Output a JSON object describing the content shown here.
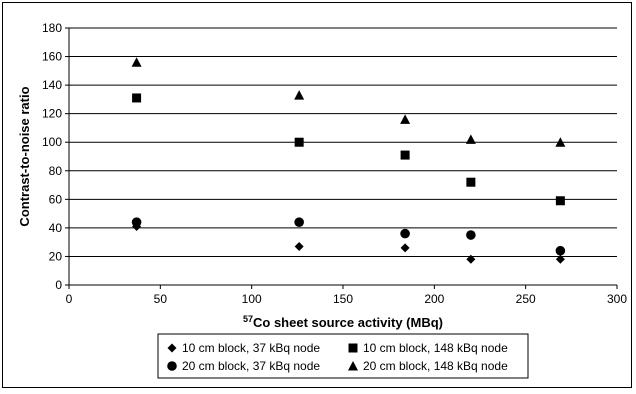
{
  "chart_data": {
    "type": "scatter",
    "title": "",
    "xlabel_sup": "57",
    "xlabel": "Co sheet source activity (MBq)",
    "ylabel": "Contrast-to-noise ratio",
    "xlim": [
      0,
      300
    ],
    "ylim": [
      0,
      180
    ],
    "xticks": [
      0,
      50,
      100,
      150,
      200,
      250,
      300
    ],
    "yticks": [
      0,
      20,
      40,
      60,
      80,
      100,
      120,
      140,
      160,
      180
    ],
    "grid": "horizontal",
    "legend_position": "bottom",
    "series": [
      {
        "name": "10 cm block, 37 kBq node",
        "marker": "diamond",
        "color": "#000000",
        "x": [
          37,
          126,
          184,
          220,
          269
        ],
        "y": [
          41,
          27,
          26,
          18,
          18
        ]
      },
      {
        "name": "10 cm block, 148 kBq node",
        "marker": "square",
        "color": "#000000",
        "x": [
          37,
          126,
          184,
          220,
          269
        ],
        "y": [
          131,
          100,
          91,
          72,
          59
        ]
      },
      {
        "name": "20 cm block, 37 kBq node",
        "marker": "circle",
        "color": "#000000",
        "x": [
          37,
          126,
          184,
          220,
          269
        ],
        "y": [
          44,
          44,
          36,
          35,
          24
        ]
      },
      {
        "name": "20 cm block, 148 kBq node",
        "marker": "triangle",
        "color": "#000000",
        "x": [
          37,
          126,
          184,
          220,
          269
        ],
        "y": [
          156,
          133,
          116,
          102,
          100
        ]
      }
    ]
  }
}
